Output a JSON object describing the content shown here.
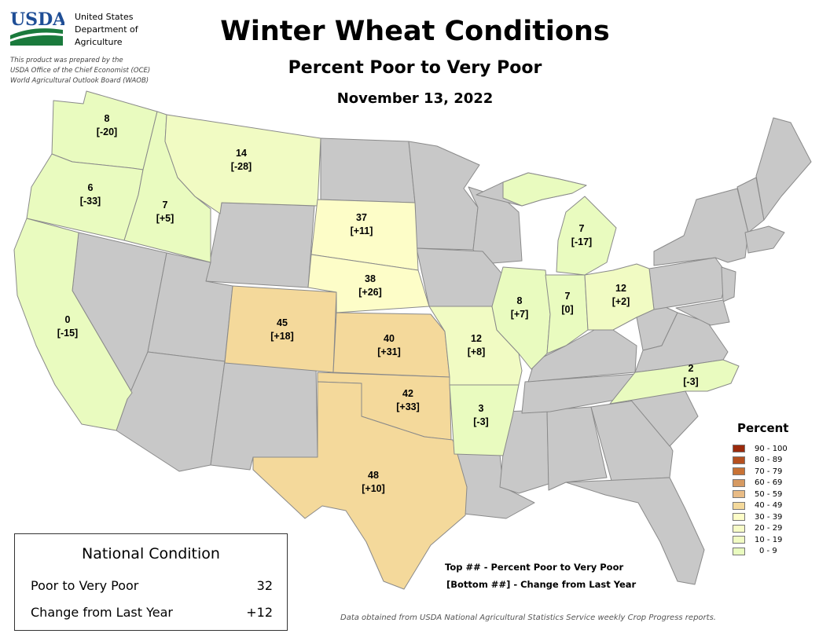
{
  "header": {
    "logo_text": "USDA",
    "agency_lines": [
      "United States",
      "Department of",
      "Agriculture"
    ],
    "prepared_lines": [
      "This product was prepared by the",
      "USDA Office of the Chief Economist (OCE)",
      "World Agricultural Outlook Board (WAOB)"
    ],
    "title": "Winter Wheat Conditions",
    "subtitle": "Percent Poor to Very Poor",
    "date": "November 13, 2022"
  },
  "colors": {
    "no_data": "#c8c8c8",
    "range_0_9": "#e9fbbf",
    "range_10_19": "#f1fbc3",
    "range_30_39": "#fdfdc8",
    "range_40_49": "#f4d99b",
    "logo_blue": "#1f4e96",
    "logo_green": "#1a7a3c"
  },
  "states": [
    {
      "code": "WA",
      "value": "8",
      "change": "[-20]"
    },
    {
      "code": "OR",
      "value": "6",
      "change": "[-33]"
    },
    {
      "code": "ID",
      "value": "7",
      "change": "[+5]"
    },
    {
      "code": "MT",
      "value": "14",
      "change": "[-28]"
    },
    {
      "code": "CA",
      "value": "0",
      "change": "[-15]"
    },
    {
      "code": "SD",
      "value": "37",
      "change": "[+11]"
    },
    {
      "code": "NE",
      "value": "38",
      "change": "[+26]"
    },
    {
      "code": "CO",
      "value": "45",
      "change": "[+18]"
    },
    {
      "code": "KS",
      "value": "40",
      "change": "[+31]"
    },
    {
      "code": "OK",
      "value": "42",
      "change": "[+33]"
    },
    {
      "code": "TX",
      "value": "48",
      "change": "[+10]"
    },
    {
      "code": "MO",
      "value": "12",
      "change": "[+8]"
    },
    {
      "code": "AR",
      "value": "3",
      "change": "[-3]"
    },
    {
      "code": "IL",
      "value": "8",
      "change": "[+7]"
    },
    {
      "code": "IN",
      "value": "7",
      "change": "[0]"
    },
    {
      "code": "OH",
      "value": "12",
      "change": "[+2]"
    },
    {
      "code": "MI",
      "value": "7",
      "change": "[-17]"
    },
    {
      "code": "NC",
      "value": "2",
      "change": "[-3]"
    }
  ],
  "legend": {
    "title": "Percent",
    "items": [
      {
        "label": "90 - 100",
        "color": "#9b2a0c"
      },
      {
        "label": "80 - 89",
        "color": "#b5501f"
      },
      {
        "label": "70 - 79",
        "color": "#c87235"
      },
      {
        "label": "60 - 69",
        "color": "#d69a62"
      },
      {
        "label": "50 - 59",
        "color": "#e8bb85"
      },
      {
        "label": "40 - 49",
        "color": "#f4d99b"
      },
      {
        "label": "30 - 39",
        "color": "#fdfdc8"
      },
      {
        "label": "20 - 29",
        "color": "#f7fcc7"
      },
      {
        "label": "10 - 19",
        "color": "#f1fbc3"
      },
      {
        "label": "0 - 9",
        "color": "#e9fbbf"
      }
    ]
  },
  "key_notes": [
    "Top ## - Percent Poor to Very Poor",
    "[Bottom ##] - Change from Last Year"
  ],
  "national": {
    "title": "National Condition",
    "rows": [
      {
        "label": "Poor to Very Poor",
        "value": "32"
      },
      {
        "label": "Change from Last Year",
        "value": "+12"
      }
    ]
  },
  "source_note": "Data obtained from USDA National Agricultural Statistics Service weekly Crop Progress reports."
}
